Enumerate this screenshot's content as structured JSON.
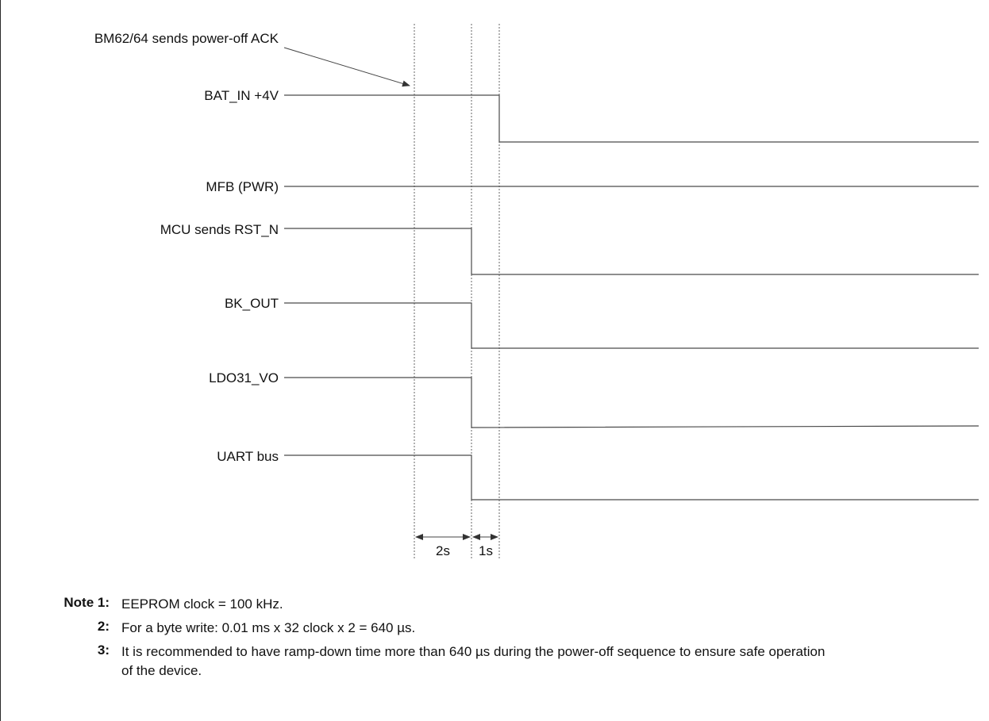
{
  "diagram": {
    "annotation": "BM62/64 sends power-off ACK",
    "signals": [
      {
        "label": "BAT_IN +4V"
      },
      {
        "label": "MFB (PWR)"
      },
      {
        "label": "MCU sends RST_N"
      },
      {
        "label": "BK_OUT"
      },
      {
        "label": "LDO31_VO"
      },
      {
        "label": "UART bus"
      }
    ],
    "intervals": [
      {
        "label": "2s"
      },
      {
        "label": "1s"
      }
    ]
  },
  "notes": [
    {
      "number": "Note 1:",
      "text": "EEPROM clock = 100 kHz."
    },
    {
      "number": "2:",
      "text": "For a byte write: 0.01 ms x 32 clock x 2 = 640 µs."
    },
    {
      "number": "3:",
      "text": "It is recommended to have ramp-down time more than 640 µs during the power-off sequence to ensure safe operation of the device."
    }
  ]
}
